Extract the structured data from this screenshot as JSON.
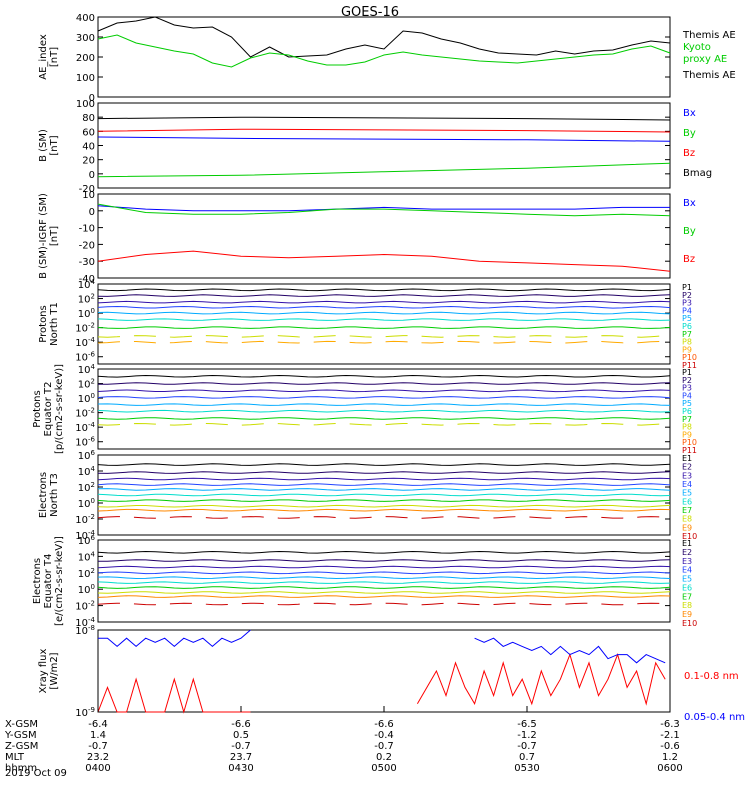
{
  "title": "GOES-16",
  "date_label": "2019 Oct 09",
  "ephemeris": {
    "row_labels": [
      "X-GSM",
      "Y-GSM",
      "Z-GSM",
      "MLT",
      "hhmm"
    ],
    "columns": [
      {
        "x_gsm": "-6.4",
        "y_gsm": "1.4",
        "z_gsm": "-0.7",
        "mlt": "23.2",
        "hhmm": "0400"
      },
      {
        "x_gsm": "-6.6",
        "y_gsm": "0.5",
        "z_gsm": "-0.7",
        "mlt": "23.7",
        "hhmm": "0430"
      },
      {
        "x_gsm": "-6.6",
        "y_gsm": "-0.4",
        "z_gsm": "-0.7",
        "mlt": "0.2",
        "hhmm": "0500"
      },
      {
        "x_gsm": "-6.5",
        "y_gsm": "-1.2",
        "z_gsm": "-0.7",
        "mlt": "0.7",
        "hhmm": "0530"
      },
      {
        "x_gsm": "-6.3",
        "y_gsm": "-2.1",
        "z_gsm": "-0.6",
        "mlt": "1.2",
        "hhmm": "0600"
      }
    ]
  },
  "colors": {
    "black": "#000000",
    "green": "#00cc00",
    "blue": "#0000ff",
    "red": "#ff0000"
  },
  "chart_data": [
    {
      "id": "ae",
      "type": "line",
      "ylabel": "AE_index\n[nT]",
      "ylim": [
        0,
        400
      ],
      "yticks": [
        "0",
        "100",
        "200",
        "300",
        "400"
      ],
      "x": [
        0,
        4,
        8,
        12,
        16,
        20,
        24,
        28,
        32,
        36,
        40,
        44,
        48,
        52,
        56,
        60,
        64,
        68,
        72,
        76,
        80,
        84,
        88,
        92,
        96,
        100,
        104,
        108,
        112,
        116,
        120
      ],
      "series": [
        {
          "name": "Themis AE",
          "color": "#000000",
          "values": [
            330,
            370,
            380,
            400,
            360,
            345,
            350,
            300,
            200,
            250,
            200,
            205,
            210,
            240,
            260,
            240,
            330,
            320,
            290,
            270,
            240,
            220,
            215,
            210,
            230,
            215,
            230,
            235,
            260,
            280,
            270
          ]
        },
        {
          "name": "Kyoto\nproxy AE",
          "color": "#00cc00",
          "values": [
            290,
            310,
            270,
            250,
            230,
            215,
            170,
            150,
            195,
            220,
            210,
            180,
            160,
            160,
            175,
            210,
            225,
            210,
            200,
            190,
            180,
            175,
            170,
            180,
            190,
            200,
            210,
            215,
            240,
            255,
            220
          ]
        }
      ]
    },
    {
      "id": "bsm",
      "type": "line",
      "ylabel": "B (SM)\n[nT]",
      "ylim": [
        -20,
        100
      ],
      "yticks": [
        "-20",
        "0",
        "20",
        "40",
        "60",
        "80",
        "100"
      ],
      "x": [
        0,
        30,
        60,
        90,
        120
      ],
      "series": [
        {
          "name": "Bx",
          "color": "#0000ff",
          "values": [
            52,
            50,
            49,
            48,
            46
          ]
        },
        {
          "name": "By",
          "color": "#00cc00",
          "values": [
            -4,
            -2,
            3,
            8,
            15
          ]
        },
        {
          "name": "Bz",
          "color": "#ff0000",
          "values": [
            60,
            63,
            62,
            61,
            59
          ]
        },
        {
          "name": "Bmag",
          "color": "#000000",
          "values": [
            78,
            80,
            79,
            78,
            76
          ]
        }
      ]
    },
    {
      "id": "digrf",
      "type": "line",
      "ylabel": "B (SM)-IGRF (SM)\n[nT]",
      "ylim": [
        -40,
        10
      ],
      "yticks": [
        "-40",
        "-30",
        "-20",
        "-10",
        "0",
        "10"
      ],
      "x": [
        0,
        10,
        20,
        30,
        40,
        50,
        60,
        70,
        80,
        90,
        100,
        110,
        120
      ],
      "series": [
        {
          "name": "Bx",
          "color": "#0000ff",
          "values": [
            3,
            1,
            0,
            0,
            0,
            1,
            2,
            1,
            1,
            1,
            1,
            2,
            2
          ]
        },
        {
          "name": "By",
          "color": "#00cc00",
          "values": [
            4,
            -1,
            -2,
            -2,
            -1,
            1,
            1,
            0,
            -1,
            -2,
            -3,
            -2,
            -3
          ]
        },
        {
          "name": "Bz",
          "color": "#ff0000",
          "values": [
            -30,
            -26,
            -24,
            -27,
            -28,
            -27,
            -26,
            -27,
            -30,
            -31,
            -32,
            -33,
            -36
          ]
        }
      ]
    },
    {
      "id": "p_t1",
      "type": "line",
      "ylabel": "Protons\nNorth T1",
      "log": true,
      "ylim_exp": [
        -7,
        4
      ],
      "yticks": [
        "10^4",
        "10^2",
        "10^0",
        "10^-2",
        "10^-4",
        "10^-6"
      ],
      "series": [
        {
          "name": "P1",
          "color": "#000000",
          "level": 3.2
        },
        {
          "name": "P2",
          "color": "#220066",
          "level": 2.4
        },
        {
          "name": "P3",
          "color": "#3311aa",
          "level": 1.5
        },
        {
          "name": "P4",
          "color": "#2244ff",
          "level": 0.8
        },
        {
          "name": "P5",
          "color": "#00aaff",
          "level": 0.0
        },
        {
          "name": "P6",
          "color": "#00ddcc",
          "level": -0.9
        },
        {
          "name": "P7",
          "color": "#00cc00",
          "level": -2.0
        },
        {
          "name": "P8",
          "color": "#ccdd00",
          "level": -3.2,
          "dashed": true
        },
        {
          "name": "P9",
          "color": "#ffaa00",
          "level": -4.0,
          "dashed": true
        },
        {
          "name": "P10",
          "color": "#ff5500",
          "level": null
        },
        {
          "name": "P11",
          "color": "#cc0000",
          "level": null
        }
      ]
    },
    {
      "id": "p_t2",
      "type": "line",
      "ylabel": "Protons\nEquator T2\n[p/(cm2-s-sr-keV)]",
      "log": true,
      "ylim_exp": [
        -7,
        4
      ],
      "yticks": [
        "10^4",
        "10^2",
        "10^0",
        "10^-2",
        "10^-4",
        "10^-6"
      ],
      "series": [
        {
          "name": "P1",
          "color": "#000000",
          "level": 3.0
        },
        {
          "name": "P2",
          "color": "#220066",
          "level": 2.0
        },
        {
          "name": "P3",
          "color": "#3311aa",
          "level": 1.0
        },
        {
          "name": "P4",
          "color": "#2244ff",
          "level": 0.1
        },
        {
          "name": "P5",
          "color": "#00aaff",
          "level": -0.9
        },
        {
          "name": "P6",
          "color": "#00ddcc",
          "level": -1.8
        },
        {
          "name": "P7",
          "color": "#00cc00",
          "level": -2.8
        },
        {
          "name": "P8",
          "color": "#ccdd00",
          "level": -3.6,
          "dashed": true
        },
        {
          "name": "P9",
          "color": "#ffaa00",
          "level": null
        },
        {
          "name": "P10",
          "color": "#ff5500",
          "level": null
        },
        {
          "name": "P11",
          "color": "#cc0000",
          "level": null
        }
      ]
    },
    {
      "id": "e_t3",
      "type": "line",
      "ylabel": "Electrons\nNorth T3",
      "log": true,
      "ylim_exp": [
        -4,
        6
      ],
      "yticks": [
        "10^6",
        "10^4",
        "10^2",
        "10^0",
        "10^-2",
        "10^-4"
      ],
      "series": [
        {
          "name": "E1",
          "color": "#000000",
          "level": 4.8
        },
        {
          "name": "E2",
          "color": "#220066",
          "level": 3.8
        },
        {
          "name": "E3",
          "color": "#3311aa",
          "level": 3.0
        },
        {
          "name": "E4",
          "color": "#2244ff",
          "level": 2.3
        },
        {
          "name": "E5",
          "color": "#00aaff",
          "level": 1.7
        },
        {
          "name": "E6",
          "color": "#00ddcc",
          "level": 1.0
        },
        {
          "name": "E7",
          "color": "#00cc00",
          "level": 0.3
        },
        {
          "name": "E8",
          "color": "#ccdd00",
          "level": -0.4
        },
        {
          "name": "E9",
          "color": "#ff8800",
          "level": -0.9
        },
        {
          "name": "E10",
          "color": "#cc0000",
          "level": -1.8,
          "dashed": true
        }
      ]
    },
    {
      "id": "e_t4",
      "type": "line",
      "ylabel": "Electrons\nEquator T4\n[e/(cm2-s-sr-keV)]",
      "log": true,
      "ylim_exp": [
        -4,
        6
      ],
      "yticks": [
        "10^6",
        "10^4",
        "10^2",
        "10^0",
        "10^-2",
        "10^-4"
      ],
      "series": [
        {
          "name": "E1",
          "color": "#000000",
          "level": 4.5
        },
        {
          "name": "E2",
          "color": "#220066",
          "level": 3.5
        },
        {
          "name": "E3",
          "color": "#3311aa",
          "level": 2.7
        },
        {
          "name": "E4",
          "color": "#2244ff",
          "level": 2.0
        },
        {
          "name": "E5",
          "color": "#00aaff",
          "level": 1.4
        },
        {
          "name": "E6",
          "color": "#00ddcc",
          "level": 0.8
        },
        {
          "name": "E7",
          "color": "#00cc00",
          "level": 0.2
        },
        {
          "name": "E8",
          "color": "#ccdd00",
          "level": -0.4
        },
        {
          "name": "E9",
          "color": "#ff8800",
          "level": -0.9
        },
        {
          "name": "E10",
          "color": "#cc0000",
          "level": -1.8,
          "dashed": true
        }
      ]
    },
    {
      "id": "xray",
      "type": "line",
      "ylabel": "Xray flux\n[W/m2]",
      "log": true,
      "ylim_exp": [
        -9,
        -8
      ],
      "yticks": [
        "10^-8",
        "10^-9"
      ],
      "series": [
        {
          "name": "0.1-0.8 nm",
          "color": "#ff0000",
          "segments": [
            {
              "x": [
                0,
                2,
                4,
                6,
                8,
                10,
                12,
                14,
                16,
                18,
                20,
                22,
                24,
                26,
                28,
                30,
                32
              ],
              "values": [
                -9.0,
                -8.7,
                -9.0,
                -9.0,
                -8.6,
                -9.0,
                -9.0,
                -9.0,
                -8.6,
                -9.0,
                -8.6,
                -9.0,
                -9.0,
                -9.0,
                -9.0,
                -9.0,
                -9.0
              ]
            },
            {
              "x": [
                67,
                69,
                71,
                73,
                75,
                77,
                79,
                81,
                83,
                85,
                87,
                89,
                91,
                93,
                95,
                97,
                99,
                101,
                103,
                105,
                107,
                109,
                111,
                113,
                115,
                117,
                119
              ],
              "values": [
                -8.9,
                -8.7,
                -8.5,
                -8.8,
                -8.4,
                -8.7,
                -8.9,
                -8.5,
                -8.8,
                -8.4,
                -8.8,
                -8.6,
                -8.9,
                -8.5,
                -8.8,
                -8.6,
                -8.3,
                -8.7,
                -8.4,
                -8.8,
                -8.6,
                -8.3,
                -8.7,
                -8.5,
                -8.9,
                -8.4,
                -8.6
              ]
            }
          ]
        },
        {
          "name": "0.05-0.4 nm",
          "color": "#0000ff",
          "segments": [
            {
              "x": [
                0,
                2,
                4,
                6,
                8,
                10,
                12,
                14,
                16,
                18,
                20,
                22,
                24,
                26,
                28,
                30,
                32
              ],
              "values": [
                -8.1,
                -8.1,
                -8.2,
                -8.1,
                -8.2,
                -8.1,
                -8.15,
                -8.1,
                -8.2,
                -8.1,
                -8.15,
                -8.1,
                -8.2,
                -8.1,
                -8.15,
                -8.1,
                -8.0
              ]
            },
            {
              "x": [
                79,
                81,
                83,
                85,
                87,
                89,
                91,
                93,
                95,
                97,
                99,
                101,
                103,
                105,
                107,
                109,
                111,
                113,
                115,
                117,
                119
              ],
              "values": [
                -8.1,
                -8.15,
                -8.1,
                -8.2,
                -8.15,
                -8.2,
                -8.25,
                -8.2,
                -8.3,
                -8.2,
                -8.3,
                -8.25,
                -8.3,
                -8.2,
                -8.35,
                -8.3,
                -8.3,
                -8.4,
                -8.3,
                -8.35,
                -8.4
              ]
            }
          ]
        }
      ]
    }
  ]
}
